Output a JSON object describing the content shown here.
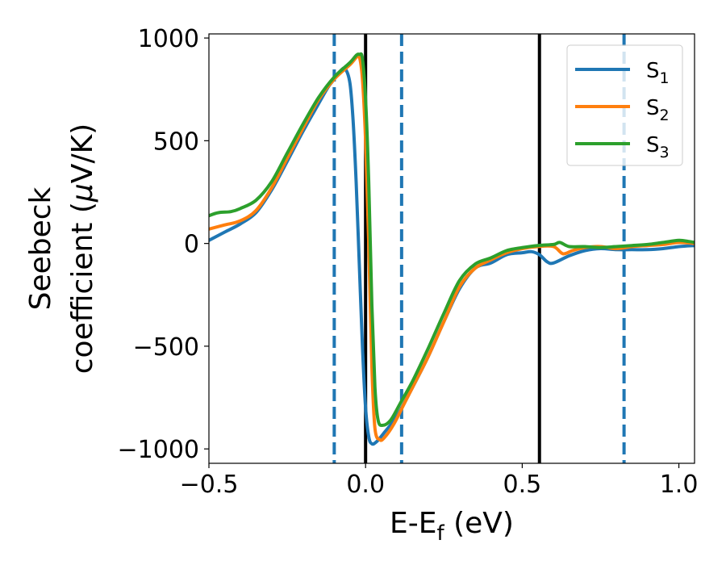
{
  "chart_data": {
    "type": "line",
    "title": "",
    "xlabel": "E-E",
    "xlabel_sub": "f",
    "xlabel_unit": " (eV)",
    "ylabel_line1": "Seebeck",
    "ylabel_line2_prefix": "coefficient  (",
    "ylabel_mu": "μ",
    "ylabel_line2_suffix": "V/K)",
    "xlim": [
      -0.5,
      1.05
    ],
    "ylim": [
      -1070,
      1020
    ],
    "xticks": [
      {
        "value": -0.5,
        "label": "−0.5"
      },
      {
        "value": 0.0,
        "label": "0.0"
      },
      {
        "value": 0.5,
        "label": "0.5"
      },
      {
        "value": 1.0,
        "label": "1.0"
      }
    ],
    "yticks": [
      {
        "value": 1000,
        "label": "1000"
      },
      {
        "value": 500,
        "label": "500"
      },
      {
        "value": 0,
        "label": "0"
      },
      {
        "value": -500,
        "label": "−500"
      },
      {
        "value": -1000,
        "label": "−1000"
      }
    ],
    "grid": false,
    "legend": {
      "placement": "top-right"
    },
    "vlines_solid": [
      0.0,
      0.555
    ],
    "vlines_dashed": [
      -0.1,
      0.115,
      0.825
    ],
    "colors": {
      "vline_solid": "#000000",
      "vline_dashed": "#1f77b4"
    },
    "series": [
      {
        "name": "S",
        "name_sub": "1",
        "color": "#1f77b4",
        "points": [
          [
            -0.5,
            15
          ],
          [
            -0.45,
            55
          ],
          [
            -0.4,
            95
          ],
          [
            -0.35,
            150
          ],
          [
            -0.3,
            260
          ],
          [
            -0.25,
            400
          ],
          [
            -0.2,
            545
          ],
          [
            -0.15,
            680
          ],
          [
            -0.12,
            760
          ],
          [
            -0.1,
            800
          ],
          [
            -0.08,
            840
          ],
          [
            -0.065,
            850
          ],
          [
            -0.05,
            780
          ],
          [
            -0.04,
            600
          ],
          [
            -0.03,
            300
          ],
          [
            -0.02,
            -100
          ],
          [
            -0.01,
            -500
          ],
          [
            0.0,
            -800
          ],
          [
            0.01,
            -940
          ],
          [
            0.02,
            -975
          ],
          [
            0.035,
            -965
          ],
          [
            0.06,
            -920
          ],
          [
            0.1,
            -840
          ],
          [
            0.15,
            -700
          ],
          [
            0.2,
            -550
          ],
          [
            0.25,
            -380
          ],
          [
            0.3,
            -220
          ],
          [
            0.35,
            -120
          ],
          [
            0.4,
            -95
          ],
          [
            0.45,
            -55
          ],
          [
            0.5,
            -45
          ],
          [
            0.53,
            -40
          ],
          [
            0.555,
            -55
          ],
          [
            0.58,
            -90
          ],
          [
            0.6,
            -95
          ],
          [
            0.65,
            -60
          ],
          [
            0.7,
            -35
          ],
          [
            0.75,
            -25
          ],
          [
            0.8,
            -30
          ],
          [
            0.85,
            -30
          ],
          [
            0.9,
            -30
          ],
          [
            0.95,
            -25
          ],
          [
            1.0,
            -15
          ],
          [
            1.05,
            -10
          ]
        ]
      },
      {
        "name": "S",
        "name_sub": "2",
        "color": "#ff7f0e",
        "points": [
          [
            -0.5,
            70
          ],
          [
            -0.45,
            90
          ],
          [
            -0.4,
            110
          ],
          [
            -0.35,
            160
          ],
          [
            -0.3,
            270
          ],
          [
            -0.25,
            415
          ],
          [
            -0.2,
            560
          ],
          [
            -0.15,
            700
          ],
          [
            -0.1,
            800
          ],
          [
            -0.05,
            870
          ],
          [
            -0.03,
            905
          ],
          [
            -0.02,
            910
          ],
          [
            -0.01,
            800
          ],
          [
            0.0,
            500
          ],
          [
            0.01,
            0
          ],
          [
            0.02,
            -600
          ],
          [
            0.03,
            -900
          ],
          [
            0.045,
            -955
          ],
          [
            0.06,
            -945
          ],
          [
            0.09,
            -880
          ],
          [
            0.12,
            -790
          ],
          [
            0.15,
            -700
          ],
          [
            0.2,
            -550
          ],
          [
            0.25,
            -380
          ],
          [
            0.3,
            -210
          ],
          [
            0.35,
            -120
          ],
          [
            0.4,
            -80
          ],
          [
            0.45,
            -45
          ],
          [
            0.5,
            -25
          ],
          [
            0.55,
            -15
          ],
          [
            0.6,
            -15
          ],
          [
            0.63,
            -50
          ],
          [
            0.66,
            -35
          ],
          [
            0.7,
            -20
          ],
          [
            0.75,
            -15
          ],
          [
            0.8,
            -25
          ],
          [
            0.85,
            -15
          ],
          [
            0.9,
            -10
          ],
          [
            0.95,
            -5
          ],
          [
            1.0,
            5
          ],
          [
            1.05,
            0
          ]
        ]
      },
      {
        "name": "S",
        "name_sub": "3",
        "color": "#2ca02c",
        "points": [
          [
            -0.5,
            135
          ],
          [
            -0.47,
            150
          ],
          [
            -0.43,
            155
          ],
          [
            -0.4,
            170
          ],
          [
            -0.35,
            210
          ],
          [
            -0.3,
            300
          ],
          [
            -0.25,
            440
          ],
          [
            -0.2,
            580
          ],
          [
            -0.15,
            710
          ],
          [
            -0.1,
            810
          ],
          [
            -0.05,
            880
          ],
          [
            -0.03,
            915
          ],
          [
            -0.02,
            920
          ],
          [
            -0.01,
            900
          ],
          [
            0.0,
            700
          ],
          [
            0.01,
            300
          ],
          [
            0.02,
            -300
          ],
          [
            0.03,
            -700
          ],
          [
            0.04,
            -860
          ],
          [
            0.055,
            -885
          ],
          [
            0.08,
            -860
          ],
          [
            0.11,
            -780
          ],
          [
            0.15,
            -670
          ],
          [
            0.2,
            -510
          ],
          [
            0.25,
            -340
          ],
          [
            0.3,
            -180
          ],
          [
            0.35,
            -100
          ],
          [
            0.4,
            -70
          ],
          [
            0.45,
            -35
          ],
          [
            0.5,
            -20
          ],
          [
            0.55,
            -10
          ],
          [
            0.6,
            -5
          ],
          [
            0.62,
            5
          ],
          [
            0.65,
            -15
          ],
          [
            0.7,
            -15
          ],
          [
            0.75,
            -20
          ],
          [
            0.8,
            -15
          ],
          [
            0.85,
            -10
          ],
          [
            0.9,
            -5
          ],
          [
            0.95,
            5
          ],
          [
            1.0,
            15
          ],
          [
            1.03,
            10
          ],
          [
            1.05,
            5
          ]
        ]
      }
    ]
  }
}
